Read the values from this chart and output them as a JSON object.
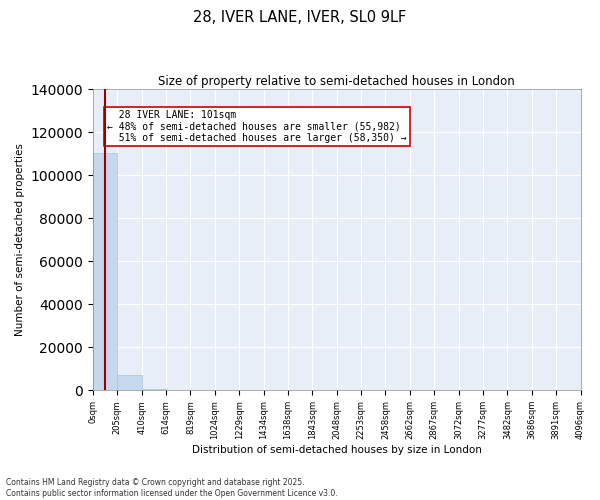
{
  "title_line1": "28, IVER LANE, IVER, SL0 9LF",
  "title_line2": "Size of property relative to semi-detached houses in London",
  "xlabel": "Distribution of semi-detached houses by size in London",
  "ylabel": "Number of semi-detached properties",
  "property_size": 101,
  "property_label": "28 IVER LANE: 101sqm",
  "pct_smaller": 48,
  "pct_smaller_count": 55982,
  "pct_larger": 51,
  "pct_larger_count": 58350,
  "bar_color": "#c5d8ed",
  "bar_edge_color": "#a8c4de",
  "vline_color": "#990000",
  "annotation_box_color": "#ffffff",
  "annotation_box_edge": "#cc0000",
  "background_color": "#e8eef8",
  "bin_edges": [
    0,
    205,
    410,
    614,
    819,
    1024,
    1229,
    1434,
    1638,
    1843,
    2048,
    2253,
    2458,
    2662,
    2867,
    3072,
    3277,
    3482,
    3686,
    3891,
    4096
  ],
  "bin_labels": [
    "0sqm",
    "205sqm",
    "410sqm",
    "614sqm",
    "819sqm",
    "1024sqm",
    "1229sqm",
    "1434sqm",
    "1638sqm",
    "1843sqm",
    "2048sqm",
    "2253sqm",
    "2458sqm",
    "2662sqm",
    "2867sqm",
    "3072sqm",
    "3277sqm",
    "3482sqm",
    "3686sqm",
    "3891sqm",
    "4096sqm"
  ],
  "bar_heights": [
    110332,
    7000,
    850,
    220,
    80,
    40,
    20,
    15,
    10,
    8,
    6,
    5,
    4,
    3,
    3,
    2,
    2,
    2,
    1,
    1
  ],
  "ylim": [
    0,
    140000
  ],
  "yticks": [
    0,
    20000,
    40000,
    60000,
    80000,
    100000,
    120000,
    140000
  ],
  "footer_line1": "Contains HM Land Registry data © Crown copyright and database right 2025.",
  "footer_line2": "Contains public sector information licensed under the Open Government Licence v3.0."
}
